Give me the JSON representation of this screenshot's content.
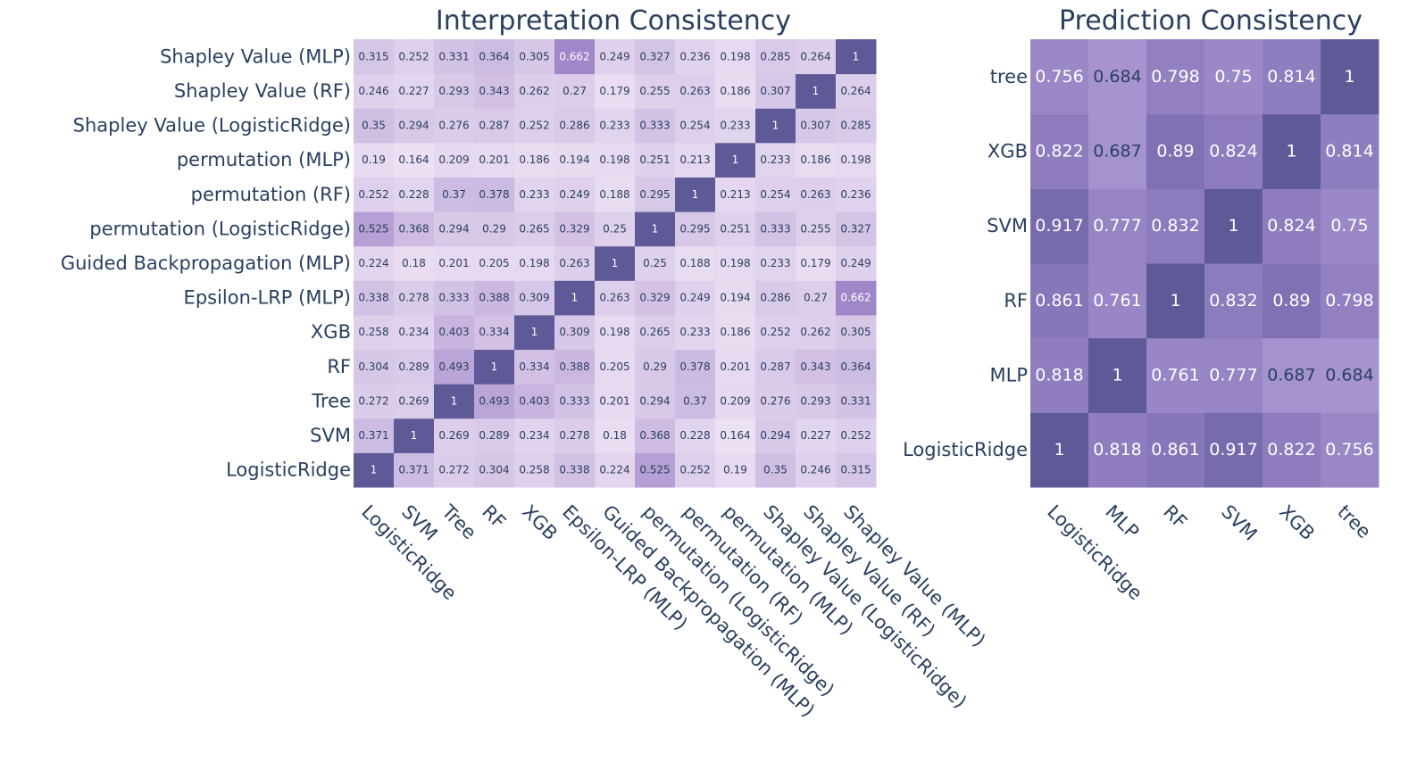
{
  "chart_data": [
    {
      "type": "heatmap",
      "title": "Interpretation Consistency",
      "x": [
        "LogisticRidge",
        "SVM",
        "Tree",
        "RF",
        "XGB",
        "Epsilon-LRP (MLP)",
        "Guided Backpropagation (MLP)",
        "permutation (LogisticRidge)",
        "permutation (RF)",
        "permutation (MLP)",
        "Shapley Value (LogisticRidge)",
        "Shapley Value (RF)",
        "Shapley Value (MLP)"
      ],
      "y": [
        "LogisticRidge",
        "SVM",
        "Tree",
        "RF",
        "XGB",
        "Epsilon-LRP (MLP)",
        "Guided Backpropagation (MLP)",
        "permutation (LogisticRidge)",
        "permutation (RF)",
        "permutation (MLP)",
        "Shapley Value (LogisticRidge)",
        "Shapley Value (RF)",
        "Shapley Value (MLP)"
      ],
      "z": [
        [
          "1",
          "0.371",
          "0.272",
          "0.304",
          "0.258",
          "0.338",
          "0.224",
          "0.525",
          "0.252",
          "0.19",
          "0.35",
          "0.246",
          "0.315"
        ],
        [
          "0.371",
          "1",
          "0.269",
          "0.289",
          "0.234",
          "0.278",
          "0.18",
          "0.368",
          "0.228",
          "0.164",
          "0.294",
          "0.227",
          "0.252"
        ],
        [
          "0.272",
          "0.269",
          "1",
          "0.493",
          "0.403",
          "0.333",
          "0.201",
          "0.294",
          "0.37",
          "0.209",
          "0.276",
          "0.293",
          "0.331"
        ],
        [
          "0.304",
          "0.289",
          "0.493",
          "1",
          "0.334",
          "0.388",
          "0.205",
          "0.29",
          "0.378",
          "0.201",
          "0.287",
          "0.343",
          "0.364"
        ],
        [
          "0.258",
          "0.234",
          "0.403",
          "0.334",
          "1",
          "0.309",
          "0.198",
          "0.265",
          "0.233",
          "0.186",
          "0.252",
          "0.262",
          "0.305"
        ],
        [
          "0.338",
          "0.278",
          "0.333",
          "0.388",
          "0.309",
          "1",
          "0.263",
          "0.329",
          "0.249",
          "0.194",
          "0.286",
          "0.27",
          "0.662"
        ],
        [
          "0.224",
          "0.18",
          "0.201",
          "0.205",
          "0.198",
          "0.263",
          "1",
          "0.25",
          "0.188",
          "0.198",
          "0.233",
          "0.179",
          "0.249"
        ],
        [
          "0.525",
          "0.368",
          "0.294",
          "0.29",
          "0.265",
          "0.329",
          "0.25",
          "1",
          "0.295",
          "0.251",
          "0.333",
          "0.255",
          "0.327"
        ],
        [
          "0.252",
          "0.228",
          "0.37",
          "0.378",
          "0.233",
          "0.249",
          "0.188",
          "0.295",
          "1",
          "0.213",
          "0.254",
          "0.263",
          "0.236"
        ],
        [
          "0.19",
          "0.164",
          "0.209",
          "0.201",
          "0.186",
          "0.194",
          "0.198",
          "0.251",
          "0.213",
          "1",
          "0.233",
          "0.186",
          "0.198"
        ],
        [
          "0.35",
          "0.294",
          "0.276",
          "0.287",
          "0.252",
          "0.286",
          "0.233",
          "0.333",
          "0.254",
          "0.233",
          "1",
          "0.307",
          "0.285"
        ],
        [
          "0.246",
          "0.227",
          "0.293",
          "0.343",
          "0.262",
          "0.27",
          "0.179",
          "0.255",
          "0.263",
          "0.186",
          "0.307",
          "1",
          "0.264"
        ],
        [
          "0.315",
          "0.252",
          "0.331",
          "0.364",
          "0.305",
          "0.662",
          "0.249",
          "0.327",
          "0.236",
          "0.198",
          "0.285",
          "0.264",
          "1"
        ]
      ],
      "color_low": "#ece0f3",
      "color_mid": "#9f86c9",
      "color_high": "#5e5a97"
    },
    {
      "type": "heatmap",
      "title": "Prediction Consistency",
      "x": [
        "LogisticRidge",
        "MLP",
        "RF",
        "SVM",
        "XGB",
        "tree"
      ],
      "y": [
        "LogisticRidge",
        "MLP",
        "RF",
        "SVM",
        "XGB",
        "tree"
      ],
      "z": [
        [
          "1",
          "0.818",
          "0.861",
          "0.917",
          "0.822",
          "0.756"
        ],
        [
          "0.818",
          "1",
          "0.761",
          "0.777",
          "0.687",
          "0.684"
        ],
        [
          "0.861",
          "0.761",
          "1",
          "0.832",
          "0.89",
          "0.798"
        ],
        [
          "0.917",
          "0.777",
          "0.832",
          "1",
          "0.824",
          "0.75"
        ],
        [
          "0.822",
          "0.687",
          "0.89",
          "0.824",
          "1",
          "0.814"
        ],
        [
          "0.756",
          "0.684",
          "0.798",
          "0.75",
          "0.814",
          "1"
        ]
      ],
      "color_low": "#a693cf",
      "color_mid": "#8574b8",
      "color_high": "#5e5a97"
    }
  ]
}
